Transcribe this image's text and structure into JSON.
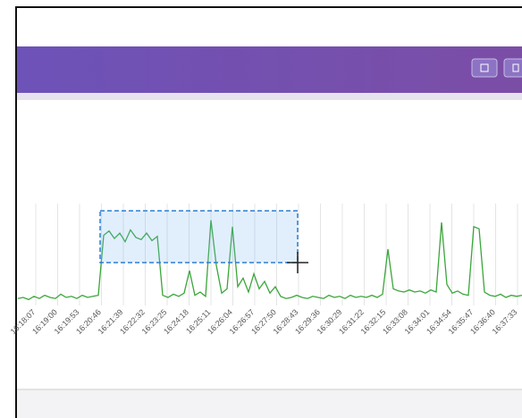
{
  "chart_data": {
    "type": "line",
    "x_labels": [
      "16:18:07",
      "16:19:00",
      "16:19:53",
      "16:20:46",
      "16:21:39",
      "16:22:32",
      "16:23:25",
      "16:24:18",
      "16:25:11",
      "16:26:04",
      "16:26:57",
      "16:27:50",
      "16:28:43",
      "16:29:36",
      "16:30:29",
      "16:31:22",
      "16:32:15",
      "16:33:08",
      "16:34:01",
      "16:34:54",
      "16:35:47",
      "16:36:40",
      "16:37:33"
    ],
    "series": [
      {
        "color": "#3aa63a",
        "values": [
          9,
          10,
          8,
          11,
          9,
          12,
          10,
          9,
          13,
          10,
          11,
          9,
          12,
          10,
          11,
          12,
          68,
          72,
          65,
          70,
          62,
          73,
          66,
          64,
          70,
          63,
          67,
          12,
          10,
          13,
          11,
          14,
          35,
          12,
          15,
          11,
          82,
          40,
          14,
          18,
          76,
          20,
          28,
          15,
          32,
          18,
          25,
          14,
          20,
          11,
          9,
          10,
          12,
          10,
          9,
          11,
          10,
          9,
          12,
          10,
          11,
          9,
          12,
          10,
          11,
          10,
          12,
          10,
          13,
          55,
          18,
          16,
          15,
          17,
          15,
          16,
          14,
          17,
          15,
          80,
          22,
          14,
          16,
          13,
          12,
          76,
          74,
          15,
          12,
          11,
          13,
          10,
          12,
          11,
          12
        ]
      }
    ],
    "ylim": [
      0,
      100
    ],
    "grid": true
  }
}
